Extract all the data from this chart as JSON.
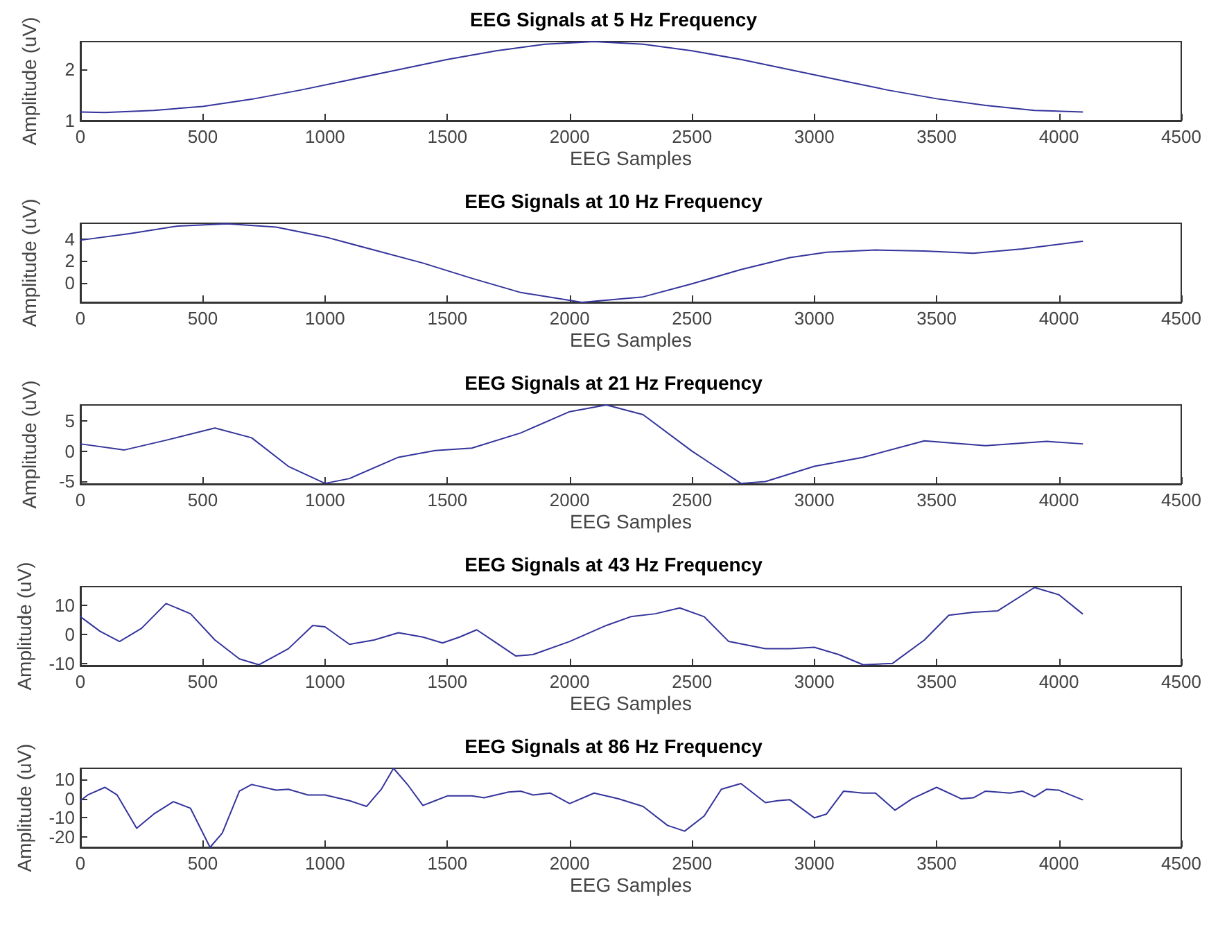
{
  "chart_data": [
    {
      "type": "line",
      "title": "EEG Signals at 5 Hz Frequency",
      "xlabel": "EEG Samples",
      "ylabel": "Amplitude (uV)",
      "color": "#34349c",
      "marker": "none",
      "grid": false,
      "xlim": [
        0,
        4500
      ],
      "xticks": [
        0,
        500,
        1000,
        1500,
        2000,
        2500,
        3000,
        3500,
        4000,
        4500
      ],
      "ylim": [
        1,
        2.55
      ],
      "yticks": [
        1,
        2
      ],
      "x": [
        0,
        100,
        300,
        500,
        700,
        900,
        1100,
        1300,
        1500,
        1700,
        1900,
        2100,
        2300,
        2500,
        2700,
        2900,
        3100,
        3300,
        3500,
        3700,
        3900,
        4096
      ],
      "values": [
        1.17,
        1.16,
        1.2,
        1.28,
        1.42,
        1.6,
        1.8,
        2.0,
        2.2,
        2.37,
        2.5,
        2.55,
        2.5,
        2.37,
        2.2,
        2.0,
        1.8,
        1.6,
        1.43,
        1.3,
        1.2,
        1.17
      ]
    },
    {
      "type": "line",
      "title": "EEG Signals at 10 Hz Frequency",
      "xlabel": "EEG Samples",
      "ylabel": "Amplitude (uV)",
      "color": "#34349c",
      "marker": "none",
      "grid": false,
      "xlim": [
        0,
        4500
      ],
      "xticks": [
        0,
        500,
        1000,
        1500,
        2000,
        2500,
        3000,
        3500,
        4000,
        4500
      ],
      "ylim": [
        -1.8,
        5.45
      ],
      "yticks": [
        0,
        2,
        4
      ],
      "x": [
        0,
        200,
        400,
        600,
        800,
        1000,
        1200,
        1400,
        1600,
        1800,
        2050,
        2300,
        2500,
        2700,
        2900,
        3050,
        3250,
        3450,
        3650,
        3850,
        4096
      ],
      "values": [
        3.9,
        4.5,
        5.2,
        5.4,
        5.1,
        4.2,
        3.0,
        1.8,
        0.4,
        -0.9,
        -1.8,
        -1.3,
        -0.1,
        1.2,
        2.3,
        2.8,
        3.0,
        2.9,
        2.7,
        3.1,
        3.8
      ]
    },
    {
      "type": "line",
      "title": "EEG Signals at 21 Hz Frequency",
      "xlabel": "EEG Samples",
      "ylabel": "Amplitude (uV)",
      "color": "#34349c",
      "marker": "none",
      "grid": false,
      "xlim": [
        0,
        4500
      ],
      "xticks": [
        0,
        500,
        1000,
        1500,
        2000,
        2500,
        3000,
        3500,
        4000,
        4500
      ],
      "ylim": [
        -5.4,
        7.6
      ],
      "yticks": [
        -5,
        0,
        5
      ],
      "x": [
        0,
        180,
        350,
        550,
        700,
        850,
        1000,
        1100,
        1300,
        1450,
        1600,
        1800,
        2000,
        2150,
        2300,
        2500,
        2700,
        2800,
        3000,
        3200,
        3450,
        3700,
        3950,
        4096
      ],
      "values": [
        1.2,
        0.2,
        1.8,
        3.8,
        2.2,
        -2.5,
        -5.3,
        -4.5,
        -1.0,
        0.1,
        0.5,
        3.0,
        6.5,
        7.6,
        6.0,
        0.0,
        -5.3,
        -5.0,
        -2.5,
        -1.0,
        1.7,
        0.9,
        1.6,
        1.2
      ]
    },
    {
      "type": "line",
      "title": "EEG Signals at 43 Hz Frequency",
      "xlabel": "EEG Samples",
      "ylabel": "Amplitude (uV)",
      "color": "#34349c",
      "marker": "none",
      "grid": false,
      "xlim": [
        0,
        4500
      ],
      "xticks": [
        0,
        500,
        1000,
        1500,
        2000,
        2500,
        3000,
        3500,
        4000,
        4500
      ],
      "ylim": [
        -10.8,
        16.3
      ],
      "yticks": [
        -10,
        0,
        10
      ],
      "x": [
        0,
        80,
        160,
        250,
        350,
        450,
        550,
        650,
        730,
        850,
        950,
        1000,
        1100,
        1200,
        1300,
        1400,
        1480,
        1550,
        1620,
        1700,
        1780,
        1850,
        2000,
        2150,
        2250,
        2350,
        2450,
        2550,
        2650,
        2800,
        2900,
        3000,
        3100,
        3200,
        3320,
        3450,
        3550,
        3650,
        3750,
        3900,
        4000,
        4096
      ],
      "values": [
        6,
        1,
        -2.5,
        2,
        10.5,
        7,
        -2,
        -8.5,
        -10.5,
        -5,
        3,
        2.5,
        -3.5,
        -2,
        0.5,
        -1,
        -3,
        -1,
        1.5,
        -3,
        -7.5,
        -7,
        -2.5,
        3,
        6,
        7,
        9,
        6,
        -2.5,
        -5,
        -5,
        -4.5,
        -7,
        -10.5,
        -10,
        -2,
        6.5,
        7.5,
        8,
        16,
        13.5,
        7
      ]
    },
    {
      "type": "line",
      "title": "EEG Signals at 86 Hz Frequency",
      "xlabel": "EEG Samples",
      "ylabel": "Amplitude (uV)",
      "color": "#34349c",
      "marker": "none",
      "grid": false,
      "xlim": [
        0,
        4500
      ],
      "xticks": [
        0,
        500,
        1000,
        1500,
        2000,
        2500,
        3000,
        3500,
        4000,
        4500
      ],
      "ylim": [
        -25.5,
        16
      ],
      "yticks": [
        -20,
        -10,
        0,
        10
      ],
      "x": [
        0,
        30,
        100,
        150,
        230,
        300,
        380,
        450,
        530,
        580,
        650,
        700,
        800,
        850,
        930,
        1000,
        1100,
        1170,
        1230,
        1280,
        1340,
        1400,
        1450,
        1500,
        1600,
        1650,
        1750,
        1800,
        1850,
        1920,
        2000,
        2100,
        2200,
        2300,
        2400,
        2470,
        2550,
        2620,
        2700,
        2800,
        2850,
        2900,
        3000,
        3050,
        3120,
        3200,
        3250,
        3330,
        3400,
        3500,
        3600,
        3650,
        3700,
        3800,
        3850,
        3900,
        3950,
        4000,
        4096
      ],
      "values": [
        -1,
        2,
        6,
        2,
        -15.5,
        -8,
        -1.5,
        -5,
        -25.5,
        -18,
        4,
        7.5,
        4.5,
        5,
        2,
        2,
        -1,
        -4,
        5,
        16,
        7,
        -3.5,
        -1,
        1.5,
        1.5,
        0.5,
        3.5,
        4,
        2,
        3,
        -2.5,
        3,
        0,
        -4,
        -14,
        -17,
        -9,
        5,
        8,
        -2,
        -1,
        -0.5,
        -10,
        -8,
        4,
        3,
        3,
        -6,
        0,
        6,
        0,
        0.5,
        4,
        3,
        4,
        1,
        5,
        4.5,
        -0.5
      ]
    }
  ]
}
